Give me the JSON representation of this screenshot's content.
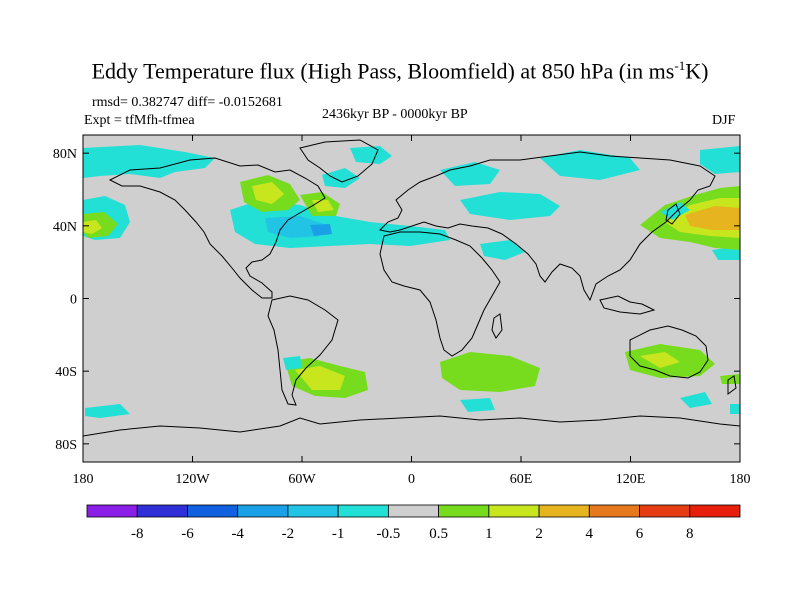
{
  "title": {
    "main": "Eddy Temperature flux (High Pass, Bloomfield) at 850 hPa (in ms",
    "sup": "-1",
    "end": "K)"
  },
  "stats": "rmsd= 0.382747 diff= -0.0152681",
  "expt": "Expt = tfMfh-tfmea",
  "period": "2436kyr BP - 0000kyr BP",
  "season": "DJF",
  "axes": {
    "x_ticks": [
      "180",
      "120W",
      "60W",
      "0",
      "60E",
      "120E",
      "180"
    ],
    "y_ticks": [
      "80N",
      "40N",
      "0",
      "40S",
      "80S"
    ],
    "lon_range": [
      -180,
      180
    ],
    "lat_range": [
      -90,
      90
    ]
  },
  "colorbar": {
    "labels": [
      "-8",
      "-6",
      "-4",
      "-2",
      "-1",
      "-0.5",
      "0.5",
      "1",
      "2",
      "4",
      "6",
      "8"
    ],
    "colors": [
      "#8a1ee6",
      "#2f2fd8",
      "#1060e0",
      "#1aa0e6",
      "#22c4e6",
      "#22e0d6",
      "#cfcfcf",
      "#78dc1e",
      "#c8e61e",
      "#e6b41e",
      "#e6781e",
      "#e63c14",
      "#e61e0a"
    ]
  },
  "colors": {
    "land_sea_background": "#cfcfcf",
    "coast": "#000000"
  }
}
